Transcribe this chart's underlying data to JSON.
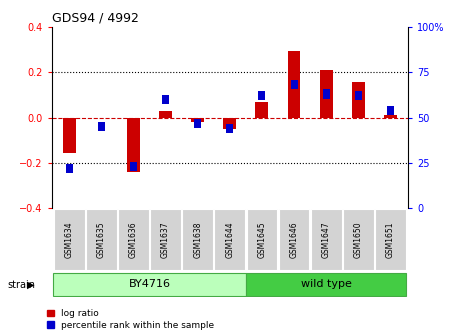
{
  "title": "GDS94 / 4992",
  "samples": [
    "GSM1634",
    "GSM1635",
    "GSM1636",
    "GSM1637",
    "GSM1638",
    "GSM1644",
    "GSM1645",
    "GSM1646",
    "GSM1647",
    "GSM1650",
    "GSM1651"
  ],
  "log_ratio": [
    -0.155,
    0.0,
    -0.24,
    0.03,
    -0.02,
    -0.05,
    0.07,
    0.295,
    0.21,
    0.155,
    0.01
  ],
  "percentile_rank": [
    22,
    45,
    23,
    60,
    47,
    44,
    62,
    68,
    63,
    62,
    54
  ],
  "strain_groups": [
    {
      "label": "BY4716",
      "start": 0,
      "end": 5
    },
    {
      "label": "wild type",
      "start": 6,
      "end": 10
    }
  ],
  "ylim_left": [
    -0.4,
    0.4
  ],
  "ylim_right": [
    0,
    100
  ],
  "yticks_left": [
    -0.4,
    -0.2,
    0.0,
    0.2,
    0.4
  ],
  "yticks_right": [
    0,
    25,
    50,
    75,
    100
  ],
  "red_color": "#CC0000",
  "blue_color": "#0000CC",
  "zero_line_color": "#CC0000",
  "bg_color": "#FFFFFF",
  "legend_labels": [
    "log ratio",
    "percentile rank within the sample"
  ],
  "by4716_color": "#BBFFBB",
  "wildtype_color": "#44CC44"
}
